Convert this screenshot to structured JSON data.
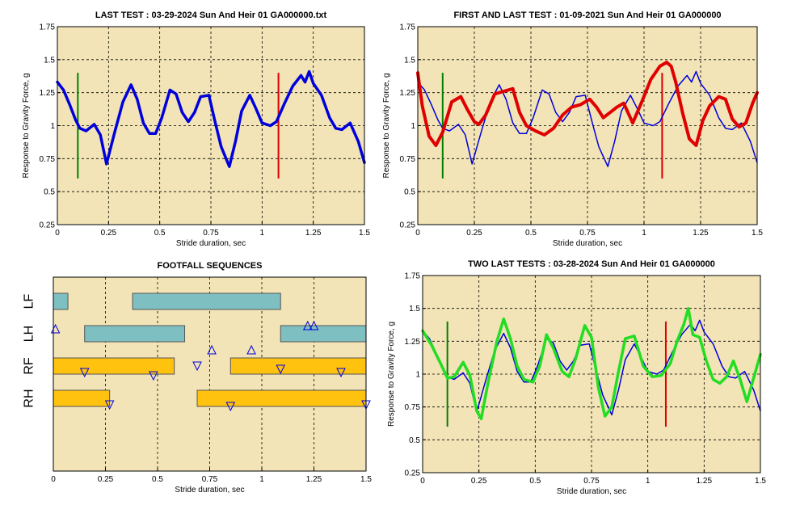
{
  "chart_data": [
    {
      "type": "line",
      "title": "LAST TEST : 03-29-2024 Sun And Heir 01 GA000000.txt",
      "xlabel": "Stride duration, sec",
      "ylabel": "Response to Gravity Force, g",
      "xlim": [
        0,
        1.5
      ],
      "ylim": [
        0.25,
        1.75
      ],
      "xticks": [
        0,
        0.25,
        0.5,
        0.75,
        1,
        1.25,
        1.5
      ],
      "xtick_labels": [
        "0",
        "0.25",
        "0.5",
        "0.75",
        "1",
        "1.25",
        "1.5"
      ],
      "yticks": [
        0.25,
        0.5,
        0.75,
        1,
        1.25,
        1.5,
        1.75
      ],
      "ytick_labels": [
        "0.25",
        "0.5",
        "0.75",
        "1",
        "1.25",
        "1.5",
        "1.75"
      ],
      "grid": true,
      "markers": [
        {
          "x": 0.1,
          "y1": 0.6,
          "y2": 1.4,
          "color": "#008000"
        },
        {
          "x": 1.08,
          "y1": 0.6,
          "y2": 1.4,
          "color": "#e00000"
        }
      ],
      "series": [
        {
          "color": "#0000dd",
          "width": 3.5,
          "x": [
            0,
            0.03,
            0.06,
            0.09,
            0.11,
            0.14,
            0.18,
            0.21,
            0.24,
            0.28,
            0.32,
            0.36,
            0.39,
            0.42,
            0.45,
            0.48,
            0.51,
            0.55,
            0.58,
            0.61,
            0.64,
            0.67,
            0.7,
            0.74,
            0.77,
            0.8,
            0.84,
            0.87,
            0.9,
            0.94,
            0.97,
            1.0,
            1.04,
            1.07,
            1.11,
            1.15,
            1.19,
            1.21,
            1.23,
            1.25,
            1.29,
            1.33,
            1.36,
            1.39,
            1.43,
            1.47,
            1.5
          ],
          "y": [
            1.33,
            1.27,
            1.16,
            1.04,
            0.98,
            0.96,
            1.01,
            0.93,
            0.71,
            0.95,
            1.18,
            1.31,
            1.2,
            1.02,
            0.94,
            0.94,
            1.06,
            1.27,
            1.24,
            1.1,
            1.03,
            1.1,
            1.22,
            1.23,
            1.03,
            0.84,
            0.69,
            0.88,
            1.11,
            1.23,
            1.13,
            1.02,
            1.0,
            1.03,
            1.17,
            1.3,
            1.38,
            1.33,
            1.41,
            1.32,
            1.23,
            1.06,
            0.98,
            0.97,
            1.02,
            0.88,
            0.72
          ]
        }
      ]
    },
    {
      "type": "line",
      "title": "FIRST AND LAST TEST : 01-09-2021 Sun And Heir 01 GA000000",
      "xlabel": "Stride duration, sec",
      "ylabel": "Response to Gravity Force, g",
      "xlim": [
        0,
        1.5
      ],
      "ylim": [
        0.25,
        1.75
      ],
      "xticks": [
        0,
        0.25,
        0.5,
        0.75,
        1,
        1.25,
        1.5
      ],
      "xtick_labels": [
        "0",
        "0.25",
        "0.5",
        "0.75",
        "1",
        "1.25",
        "1.5"
      ],
      "yticks": [
        0.25,
        0.5,
        0.75,
        1,
        1.25,
        1.5,
        1.75
      ],
      "ytick_labels": [
        "0.25",
        "0.5",
        "0.75",
        "1",
        "1.25",
        "1.5",
        "1.75"
      ],
      "grid": true,
      "markers": [
        {
          "x": 0.11,
          "y1": 0.6,
          "y2": 1.4,
          "color": "#008000"
        },
        {
          "x": 1.08,
          "y1": 0.6,
          "y2": 1.4,
          "color": "#e00000"
        }
      ],
      "series": [
        {
          "color": "#0000dd",
          "width": 1.5,
          "x": [
            0,
            0.03,
            0.06,
            0.09,
            0.11,
            0.14,
            0.18,
            0.21,
            0.24,
            0.28,
            0.32,
            0.36,
            0.39,
            0.42,
            0.45,
            0.48,
            0.51,
            0.55,
            0.58,
            0.61,
            0.64,
            0.67,
            0.7,
            0.74,
            0.77,
            0.8,
            0.84,
            0.87,
            0.9,
            0.94,
            0.97,
            1.0,
            1.04,
            1.07,
            1.11,
            1.15,
            1.19,
            1.21,
            1.23,
            1.25,
            1.29,
            1.33,
            1.36,
            1.39,
            1.43,
            1.47,
            1.5
          ],
          "y": [
            1.33,
            1.27,
            1.16,
            1.04,
            0.98,
            0.96,
            1.01,
            0.93,
            0.71,
            0.95,
            1.18,
            1.31,
            1.2,
            1.02,
            0.94,
            0.94,
            1.06,
            1.27,
            1.24,
            1.1,
            1.03,
            1.1,
            1.22,
            1.23,
            1.03,
            0.84,
            0.69,
            0.88,
            1.11,
            1.23,
            1.13,
            1.02,
            1.0,
            1.03,
            1.17,
            1.3,
            1.38,
            1.33,
            1.41,
            1.32,
            1.23,
            1.06,
            0.98,
            0.97,
            1.02,
            0.88,
            0.72
          ]
        },
        {
          "color": "#e00000",
          "width": 4,
          "x": [
            0,
            0.02,
            0.05,
            0.08,
            0.11,
            0.15,
            0.19,
            0.22,
            0.25,
            0.27,
            0.3,
            0.34,
            0.38,
            0.42,
            0.45,
            0.48,
            0.52,
            0.56,
            0.6,
            0.64,
            0.68,
            0.72,
            0.76,
            0.79,
            0.82,
            0.85,
            0.88,
            0.91,
            0.95,
            0.99,
            1.03,
            1.07,
            1.1,
            1.12,
            1.14,
            1.17,
            1.2,
            1.23,
            1.26,
            1.29,
            1.33,
            1.36,
            1.39,
            1.42,
            1.45,
            1.48,
            1.5
          ],
          "y": [
            1.4,
            1.15,
            0.92,
            0.85,
            0.95,
            1.18,
            1.22,
            1.12,
            1.03,
            1.01,
            1.08,
            1.24,
            1.26,
            1.28,
            1.1,
            1.0,
            0.96,
            0.93,
            0.98,
            1.08,
            1.14,
            1.16,
            1.2,
            1.14,
            1.06,
            1.1,
            1.14,
            1.17,
            1.02,
            1.18,
            1.35,
            1.45,
            1.48,
            1.45,
            1.33,
            1.1,
            0.9,
            0.85,
            1.04,
            1.15,
            1.22,
            1.2,
            1.05,
            0.99,
            1.02,
            1.17,
            1.25
          ]
        }
      ]
    },
    {
      "type": "timeline",
      "title": "FOOTFALL SEQUENCES",
      "xlabel": "Stride duration, sec",
      "xlim": [
        0,
        1.5
      ],
      "xticks": [
        0,
        0.25,
        0.5,
        0.75,
        1,
        1.25,
        1.5
      ],
      "xtick_labels": [
        "0",
        "0.25",
        "0.5",
        "0.75",
        "1",
        "1.25",
        "1.5"
      ],
      "grid": true,
      "lanes": [
        {
          "label": "LF",
          "color": "#7ebfc2",
          "bars": [
            [
              0,
              0.07
            ],
            [
              0.38,
              1.09
            ]
          ]
        },
        {
          "label": "LH",
          "color": "#7ebfc2",
          "bars": [
            [
              0.15,
              0.63
            ],
            [
              1.09,
              1.5
            ]
          ]
        },
        {
          "label": "RF",
          "color": "#ffc20e",
          "bars": [
            [
              0,
              0.58
            ],
            [
              0.85,
              1.5
            ]
          ]
        },
        {
          "label": "RH",
          "color": "#ffc20e",
          "bars": [
            [
              0,
              0.27
            ],
            [
              0.69,
              1.5
            ]
          ]
        }
      ],
      "events_up": [
        {
          "x": 0.01,
          "lane": 1.1
        },
        {
          "x": 0.76,
          "lane": 1.75
        },
        {
          "x": 0.95,
          "lane": 1.75
        },
        {
          "x": 1.22,
          "lane": 1.0
        },
        {
          "x": 1.25,
          "lane": 1.0
        }
      ],
      "events_down": [
        {
          "x": 0.15,
          "lane": 2.45
        },
        {
          "x": 0.48,
          "lane": 2.55
        },
        {
          "x": 0.69,
          "lane": 2.25
        },
        {
          "x": 1.09,
          "lane": 2.35
        },
        {
          "x": 1.38,
          "lane": 2.45
        },
        {
          "x": 0.27,
          "lane": 3.45
        },
        {
          "x": 0.85,
          "lane": 3.5
        },
        {
          "x": 1.5,
          "lane": 3.45
        }
      ]
    },
    {
      "type": "line",
      "title": "TWO LAST TESTS : 03-28-2024 Sun And Heir 01 GA000000",
      "xlabel": "Stride duration, sec",
      "ylabel": "Response to Gravity Force, g",
      "xlim": [
        0,
        1.5
      ],
      "ylim": [
        0.25,
        1.75
      ],
      "xticks": [
        0,
        0.25,
        0.5,
        0.75,
        1,
        1.25,
        1.5
      ],
      "xtick_labels": [
        "0",
        "0.25",
        "0.5",
        "0.75",
        "1",
        "1.25",
        "1.5"
      ],
      "yticks": [
        0.25,
        0.5,
        0.75,
        1,
        1.25,
        1.5,
        1.75
      ],
      "ytick_labels": [
        "0.25",
        "0.5",
        "0.75",
        "1",
        "1.25",
        "1.5",
        "1.75"
      ],
      "grid": true,
      "markers": [
        {
          "x": 0.11,
          "y1": 0.6,
          "y2": 1.4,
          "color": "#008000"
        },
        {
          "x": 1.08,
          "y1": 0.6,
          "y2": 1.4,
          "color": "#e00000"
        }
      ],
      "series": [
        {
          "color": "#0000dd",
          "width": 1.5,
          "x": [
            0,
            0.03,
            0.06,
            0.09,
            0.11,
            0.14,
            0.18,
            0.21,
            0.24,
            0.28,
            0.32,
            0.36,
            0.39,
            0.42,
            0.45,
            0.48,
            0.51,
            0.55,
            0.58,
            0.61,
            0.64,
            0.67,
            0.7,
            0.74,
            0.77,
            0.8,
            0.84,
            0.87,
            0.9,
            0.94,
            0.97,
            1.0,
            1.04,
            1.07,
            1.11,
            1.15,
            1.19,
            1.21,
            1.23,
            1.25,
            1.29,
            1.33,
            1.36,
            1.39,
            1.43,
            1.47,
            1.5
          ],
          "y": [
            1.33,
            1.27,
            1.16,
            1.04,
            0.98,
            0.96,
            1.01,
            0.93,
            0.71,
            0.95,
            1.18,
            1.31,
            1.2,
            1.02,
            0.94,
            0.94,
            1.06,
            1.27,
            1.24,
            1.1,
            1.03,
            1.1,
            1.22,
            1.23,
            1.03,
            0.84,
            0.69,
            0.88,
            1.11,
            1.23,
            1.13,
            1.02,
            1.0,
            1.03,
            1.17,
            1.3,
            1.38,
            1.33,
            1.41,
            1.32,
            1.23,
            1.06,
            0.98,
            0.97,
            1.02,
            0.88,
            0.72
          ]
        },
        {
          "color": "#22dd22",
          "width": 3.5,
          "x": [
            0,
            0.04,
            0.08,
            0.11,
            0.14,
            0.18,
            0.21,
            0.24,
            0.26,
            0.29,
            0.33,
            0.36,
            0.39,
            0.42,
            0.45,
            0.49,
            0.52,
            0.55,
            0.58,
            0.62,
            0.65,
            0.68,
            0.72,
            0.75,
            0.78,
            0.81,
            0.84,
            0.87,
            0.9,
            0.94,
            0.98,
            1.02,
            1.06,
            1.1,
            1.13,
            1.16,
            1.18,
            1.2,
            1.23,
            1.26,
            1.29,
            1.32,
            1.35,
            1.38,
            1.41,
            1.44,
            1.47,
            1.5
          ],
          "y": [
            1.33,
            1.22,
            1.08,
            0.97,
            0.98,
            1.09,
            0.99,
            0.72,
            0.66,
            0.93,
            1.25,
            1.42,
            1.27,
            1.06,
            0.96,
            0.94,
            1.06,
            1.3,
            1.2,
            1.02,
            0.98,
            1.12,
            1.37,
            1.28,
            0.9,
            0.68,
            0.75,
            1.02,
            1.27,
            1.29,
            1.06,
            0.98,
            0.99,
            1.08,
            1.25,
            1.38,
            1.5,
            1.3,
            1.28,
            1.1,
            0.96,
            0.93,
            0.98,
            1.1,
            0.96,
            0.79,
            0.97,
            1.15
          ]
        }
      ]
    }
  ]
}
